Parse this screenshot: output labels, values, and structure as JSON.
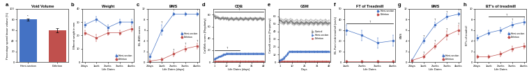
{
  "chart_data": [
    {
      "type": "bar",
      "panel_label": "a",
      "title": "Void Volume",
      "categories": [
        "Hemi-section",
        "Deletion"
      ],
      "values": [
        80.0,
        60.0
      ],
      "errors": [
        2.0,
        4.0
      ],
      "colors": [
        "#4472C4",
        "#C0504D"
      ],
      "ylabel": "Percentage spared tissue volume (%)",
      "ylim": [
        0,
        100
      ],
      "yticks": [
        0,
        20,
        40,
        60,
        80,
        100
      ],
      "annotations": [
        {
          "text": "*",
          "category": "Hemi-section"
        }
      ]
    },
    {
      "type": "line",
      "panel_label": "b",
      "title": "Weight",
      "xlabel": "Life Dates",
      "ylabel": "Efferent weight in mm",
      "categories": [
        "2days",
        "1wek",
        "2weks",
        "3weks",
        "4weks"
      ],
      "series": [
        {
          "name": "Hemi-section",
          "color": "#4472C4",
          "marker": "circle",
          "values": [
            28,
            32,
            26,
            30,
            30
          ],
          "errors": [
            2.0,
            2.0,
            2.0,
            2.0,
            2.0
          ]
        },
        {
          "name": "Deletion",
          "color": "#C0504D",
          "marker": "square",
          "values": [
            22,
            18,
            22,
            22,
            25
          ],
          "errors": [
            2.0,
            2.5,
            2.0,
            2.0,
            2.0
          ]
        }
      ],
      "ylim": [
        0,
        40
      ],
      "yticks": [
        0,
        10,
        20,
        30,
        40
      ],
      "legend": "lower right"
    },
    {
      "type": "line",
      "panel_label": "c",
      "title": "BMS",
      "xlabel": "Life Dates (days)",
      "ylabel": "BL-BMS scores",
      "categories": [
        "2days",
        "1wek",
        "2weks",
        "3weks",
        "4weks"
      ],
      "series": [
        {
          "name": "Hemi-section",
          "color": "#4472C4",
          "marker": "circle",
          "values": [
            1.0,
            6.0,
            9.0,
            9.0,
            9.0
          ],
          "errors": [
            0.5,
            1.0,
            0.3,
            0.3,
            0.3
          ]
        },
        {
          "name": "Deletion",
          "color": "#C0504D",
          "marker": "square",
          "values": [
            0.2,
            0.5,
            1.5,
            2.5,
            3.0
          ],
          "errors": [
            0.2,
            0.3,
            0.4,
            0.5,
            0.5
          ]
        }
      ],
      "ylim": [
        0,
        10
      ],
      "yticks": [
        0,
        2,
        4,
        6,
        8,
        10
      ],
      "legend": "center right",
      "annotations": [
        {
          "text": "†",
          "series": "Hemi-section",
          "category": "1wek"
        },
        {
          "text": "†",
          "series": "Hemi-section",
          "category": "2weks"
        },
        {
          "text": "†",
          "series": "Hemi-section",
          "category": "4weks"
        },
        {
          "text": "†",
          "series": "Deletion",
          "category": "2weks"
        },
        {
          "text": "†",
          "series": "Deletion",
          "category": "3weks"
        },
        {
          "text": "†",
          "series": "Deletion",
          "category": "4weks"
        }
      ]
    },
    {
      "type": "line",
      "panel_label": "d",
      "title": "CDB",
      "xlabel": "Life Dates (days)",
      "ylabel": "CatWalk scores (Regularity)",
      "categories": [
        "1",
        null,
        null,
        null,
        null,
        null,
        null,
        null,
        null,
        null,
        "10",
        null,
        null,
        null,
        null,
        null,
        null,
        null,
        null,
        null,
        null,
        "21",
        null,
        null,
        null,
        null,
        null,
        null,
        null,
        null,
        null,
        "31",
        null,
        null,
        null,
        null,
        null,
        null,
        null,
        null,
        null,
        "42"
      ],
      "series": [
        {
          "color": "#808080",
          "marker": "square",
          "values": [
            78,
            75,
            76,
            75,
            74,
            73,
            74,
            75,
            73,
            74,
            73,
            74,
            72,
            73,
            74,
            73,
            72,
            73,
            74,
            73,
            72,
            73,
            74,
            73,
            72,
            73,
            74,
            73,
            72,
            73,
            74,
            73,
            72,
            73,
            74,
            73,
            72,
            73,
            74,
            73,
            72,
            73
          ],
          "errors": [
            2,
            2,
            2,
            2,
            2,
            2,
            2,
            2,
            2,
            2,
            2,
            2,
            2,
            2,
            2,
            2,
            2,
            2,
            2,
            2,
            2,
            2,
            2,
            2,
            2,
            2,
            2,
            2,
            2,
            2,
            2,
            2,
            2,
            2,
            2,
            2,
            2,
            2,
            2,
            2,
            2,
            2
          ]
        },
        {
          "color": "#4472C4",
          "marker": "circle",
          "values": [
            5,
            6,
            7,
            8,
            9,
            10,
            11,
            12,
            13,
            13,
            14,
            14,
            14,
            14,
            14,
            14,
            14,
            14,
            14,
            14,
            14,
            14,
            14,
            14,
            14,
            14,
            14,
            14,
            14,
            14,
            14,
            14,
            14,
            14,
            14,
            14,
            14,
            14,
            14,
            14,
            14,
            14
          ],
          "errors": [
            1,
            1,
            1,
            1,
            1,
            1,
            1,
            1,
            1,
            1,
            1,
            1,
            1,
            1,
            1,
            1,
            1,
            1,
            1,
            1,
            1,
            1,
            1,
            1,
            1,
            1,
            1,
            1,
            1,
            1,
            1,
            1,
            1,
            1,
            1,
            1,
            1,
            1,
            1,
            1,
            1,
            1
          ]
        },
        {
          "color": "#C0504D",
          "marker": "square",
          "values": [
            1.0,
            1.0,
            1.0,
            1.0,
            1.0,
            1.0,
            1.0,
            1.0,
            1.0,
            1.0,
            1.0,
            1.0,
            1.0,
            1.0,
            1.0,
            1.0,
            1.0,
            1.0,
            1.0,
            1.0,
            1.0,
            1.0,
            1.0,
            1.0,
            1.0,
            1.0,
            1.0,
            1.0,
            1.0,
            1.0,
            1.0,
            1.0,
            1.0,
            1.0,
            1.0,
            1.0,
            1.0,
            1.0,
            1.0,
            1.0,
            1.0,
            1.0
          ]
        }
      ],
      "ylim": [
        0,
        90
      ],
      "yticks": [
        0,
        20,
        40,
        60,
        80
      ],
      "annotations": [
        {
          "text": "†",
          "from": "1",
          "to": "42",
          "y": 85
        },
        {
          "text": "†",
          "from": "1",
          "to": "21",
          "y": 20
        }
      ]
    },
    {
      "type": "line",
      "panel_label": "e",
      "title": "GSM",
      "xlabel": "Days",
      "ylabel": "Catwalk scores (Frequency)",
      "categories": [
        "1",
        null,
        null,
        null,
        null,
        null,
        null,
        null,
        null,
        null,
        "10",
        null,
        null,
        null,
        null,
        null,
        null,
        null,
        null,
        null,
        null,
        "21",
        null,
        null,
        null,
        null,
        null,
        null,
        null,
        null,
        null,
        "31",
        null,
        null,
        null,
        null,
        null,
        null,
        null,
        null,
        null,
        "42"
      ],
      "series": [
        {
          "name": "Control",
          "color": "#808080",
          "marker": "square",
          "values": [
            55,
            54,
            53,
            52,
            53,
            54,
            53,
            52,
            53,
            54,
            53,
            52,
            51,
            52,
            53,
            52,
            51,
            52,
            53,
            52,
            51,
            52,
            53,
            52,
            51,
            52,
            53,
            52,
            51,
            52,
            53,
            52,
            51,
            52,
            53,
            52,
            51,
            52,
            53,
            52,
            51,
            52
          ],
          "errors": [
            3,
            3,
            3,
            3,
            3,
            3,
            3,
            3,
            3,
            3,
            3,
            3,
            3,
            3,
            3,
            3,
            3,
            3,
            3,
            3,
            3,
            3,
            3,
            3,
            3,
            3,
            3,
            3,
            3,
            3,
            3,
            3,
            3,
            3,
            3,
            3,
            3,
            3,
            3,
            3,
            3,
            3
          ]
        },
        {
          "name": "Hemi-section",
          "color": "#4472C4",
          "marker": "circle",
          "values": [
            2,
            3,
            4,
            5,
            6,
            8,
            10,
            12,
            14,
            14,
            14,
            14,
            14,
            14,
            14,
            14,
            14,
            14,
            14,
            14,
            14,
            14,
            14,
            14,
            14,
            14,
            14,
            14,
            14,
            14,
            14,
            14,
            14,
            14,
            14,
            14,
            14,
            14,
            14,
            14,
            14,
            14
          ],
          "errors": [
            1,
            1,
            1,
            1,
            1,
            1,
            1,
            1,
            1,
            1,
            1,
            1,
            1,
            1,
            1,
            1,
            1,
            1,
            1,
            1,
            1,
            1,
            1,
            1,
            1,
            1,
            1,
            1,
            1,
            1,
            1,
            1,
            1,
            1,
            1,
            1,
            1,
            1,
            1,
            1,
            1,
            1
          ]
        },
        {
          "name": "Deletion",
          "color": "#C0504D",
          "marker": "square",
          "values": [
            1.0,
            1.0,
            1.0,
            1.0,
            1.0,
            1.0,
            1.0,
            1.0,
            1.0,
            1.0,
            1.0,
            1.0,
            1.0,
            1.0,
            1.0,
            1.0,
            1.0,
            1.0,
            1.0,
            1.0,
            1.0,
            1.0,
            1.0,
            1.0,
            1.0,
            1.0,
            1.0,
            1.0,
            1.0,
            1.0,
            1.0,
            1.0,
            1.0,
            1.0,
            1.0,
            1.0,
            1.0,
            1.0,
            1.0,
            1.0,
            1.0,
            1.0
          ]
        }
      ],
      "ylim": [
        0,
        70
      ],
      "yticks": [
        0,
        10,
        20,
        30,
        40,
        50,
        60
      ],
      "legend": "center right"
    },
    {
      "type": "line",
      "panel_label": "f",
      "title": "FT of Treadmill",
      "xlabel": "Life Dates",
      "ylabel": "BL-Fore Limb treadmill (cm/s)",
      "categories": [
        "1wek",
        "2weks",
        "3weks",
        "4weks"
      ],
      "series": [
        {
          "name": "Hemi-section",
          "color": "#4472C4",
          "marker": "circle",
          "values": [
            30,
            25,
            18,
            20
          ],
          "errors": [
            5,
            5,
            5,
            5
          ]
        },
        {
          "name": "Deletion",
          "color": "#C0504D",
          "marker": "square",
          "values": [
            1,
            1,
            1,
            1
          ],
          "errors": [
            0.3,
            0.3,
            0.3,
            0.3
          ]
        }
      ],
      "ylim": [
        0,
        50
      ],
      "yticks": [
        0,
        10,
        20,
        30,
        40,
        50
      ],
      "legend": "upper right",
      "annotations": [
        {
          "text": "†",
          "from": "1wek",
          "to": "4weks",
          "y": 36
        }
      ]
    },
    {
      "type": "line",
      "panel_label": "g",
      "title": "BMS",
      "xlabel": "Life Dates",
      "ylabel": "BMS",
      "categories": [
        "2days",
        "1wek",
        "2weks",
        "3weks",
        "4weks"
      ],
      "series": [
        {
          "name": "Hemi-section",
          "color": "#4472C4",
          "marker": "circle",
          "values": [
            0.3,
            4.0,
            7.0,
            8.5,
            9.0
          ],
          "errors": [
            0.2,
            0.5,
            0.5,
            0.5,
            0.3
          ]
        },
        {
          "name": "Deletion",
          "color": "#C0504D",
          "marker": "square",
          "values": [
            0.3,
            1.0,
            3.0,
            5.0,
            6.0
          ],
          "errors": [
            0.2,
            0.4,
            0.5,
            0.8,
            0.8
          ]
        }
      ],
      "ylim": [
        0,
        10
      ],
      "yticks": [
        0,
        2,
        4,
        6,
        8,
        10
      ],
      "legend": "lower right",
      "annotations": [
        {
          "text": "†",
          "series": "Hemi-section",
          "category": "1wek"
        },
        {
          "text": "†",
          "series": "Hemi-section",
          "category": "2weks"
        },
        {
          "text": "†",
          "series": "Hemi-section",
          "category": "3weks"
        },
        {
          "text": "†",
          "series": "Hemi-section",
          "category": "4weks"
        },
        {
          "text": "†",
          "series": "Deletion",
          "category": "1wek"
        },
        {
          "text": "†",
          "series": "Deletion",
          "category": "2weks"
        },
        {
          "text": "†",
          "series": "Deletion",
          "category": "3weks"
        },
        {
          "text": "†",
          "series": "Deletion",
          "category": "4weks"
        }
      ]
    },
    {
      "type": "line",
      "panel_label": "h",
      "title": "BT's of treadmill",
      "xlabel": "Life Dates",
      "ylabel": "BT's of treadmill",
      "categories": [
        "2days",
        "1wek",
        "2weks",
        "3weks",
        "4weks"
      ],
      "series": [
        {
          "name": "Hemi-section",
          "color": "#4472C4",
          "marker": "circle",
          "values": [
            4.5,
            5.5,
            6.0,
            7.0,
            7.5
          ],
          "errors": [
            0.5,
            0.5,
            0.5,
            0.5,
            0.5
          ]
        },
        {
          "name": "Deletion",
          "color": "#C0504D",
          "marker": "square",
          "values": [
            1.0,
            1.0,
            1.5,
            2.5,
            3.0
          ],
          "errors": [
            0.3,
            0.3,
            0.4,
            0.5,
            0.5
          ]
        }
      ],
      "ylim": [
        0,
        10
      ],
      "yticks": [
        0,
        2,
        4,
        6,
        8,
        10
      ],
      "legend": "center right",
      "annotations": [
        {
          "text": "†",
          "series": "Hemi-section",
          "category": "3weks"
        },
        {
          "text": "†",
          "series": "Hemi-section",
          "category": "4weks"
        },
        {
          "text": "†",
          "from": "1wek",
          "to": "4weks",
          "y": 8.5
        }
      ]
    }
  ]
}
